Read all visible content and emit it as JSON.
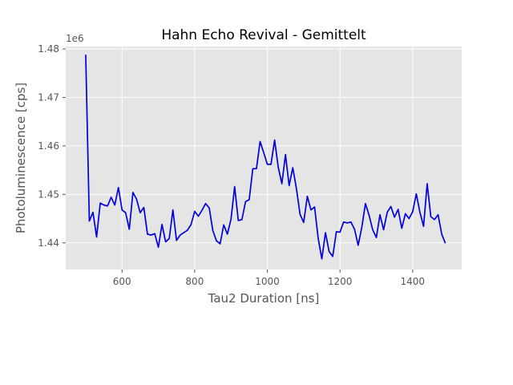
{
  "chart_data": {
    "type": "line",
    "title": "Hahn Echo Revival - Gemittelt",
    "xlabel": "Tau2 Duration [ns]",
    "ylabel": "Photoluminescence [cps]",
    "y_offset_label": "1e6",
    "xlim": [
      445,
      1535
    ],
    "ylim": [
      1.4345,
      1.4805
    ],
    "xticks": [
      600,
      800,
      1000,
      1200,
      1400
    ],
    "yticks": [
      1.44,
      1.45,
      1.46,
      1.47,
      1.48
    ],
    "xtick_labels": [
      "600",
      "800",
      "1000",
      "1200",
      "1400"
    ],
    "ytick_labels": [
      "1.44",
      "1.45",
      "1.46",
      "1.47",
      "1.48"
    ],
    "grid": true,
    "colors": {
      "background": "#e5e5e5",
      "grid": "#ffffff",
      "line": "#0000dd"
    },
    "series": [
      {
        "x": [
          500,
          510,
          520,
          530,
          540,
          550,
          560,
          570,
          580,
          590,
          600,
          610,
          620,
          630,
          640,
          650,
          660,
          670,
          680,
          690,
          700,
          710,
          720,
          730,
          740,
          750,
          760,
          770,
          780,
          790,
          800,
          810,
          820,
          830,
          840,
          850,
          860,
          870,
          880,
          890,
          900,
          910,
          920,
          930,
          940,
          950,
          960,
          970,
          980,
          990,
          1000,
          1010,
          1020,
          1030,
          1040,
          1050,
          1060,
          1070,
          1080,
          1090,
          1100,
          1110,
          1120,
          1130,
          1140,
          1150,
          1160,
          1170,
          1180,
          1190,
          1200,
          1210,
          1220,
          1230,
          1240,
          1250,
          1260,
          1270,
          1280,
          1290,
          1300,
          1310,
          1320,
          1330,
          1340,
          1350,
          1360,
          1370,
          1380,
          1390,
          1400,
          1410,
          1420,
          1430,
          1440,
          1450,
          1460,
          1470,
          1480,
          1490
        ],
        "y": [
          1.4788,
          1.4445,
          1.4463,
          1.4412,
          1.4482,
          1.4478,
          1.4476,
          1.4494,
          1.4478,
          1.4514,
          1.4468,
          1.4462,
          1.4428,
          1.4504,
          1.449,
          1.4462,
          1.4473,
          1.4418,
          1.4416,
          1.4419,
          1.4391,
          1.4438,
          1.4402,
          1.4409,
          1.4468,
          1.4405,
          1.4416,
          1.4421,
          1.4426,
          1.4438,
          1.4465,
          1.4455,
          1.4467,
          1.4481,
          1.4472,
          1.4425,
          1.4404,
          1.4398,
          1.4437,
          1.4418,
          1.4449,
          1.4516,
          1.4446,
          1.4448,
          1.4485,
          1.4489,
          1.4553,
          1.4553,
          1.4609,
          1.4586,
          1.4562,
          1.4562,
          1.4612,
          1.4556,
          1.4522,
          1.4582,
          1.4518,
          1.4555,
          1.4512,
          1.4459,
          1.4442,
          1.4496,
          1.4468,
          1.4474,
          1.4409,
          1.4367,
          1.4421,
          1.4382,
          1.4372,
          1.4423,
          1.4422,
          1.4443,
          1.4441,
          1.4443,
          1.4428,
          1.4395,
          1.4432,
          1.4481,
          1.4457,
          1.4427,
          1.4411,
          1.4458,
          1.4427,
          1.4463,
          1.4475,
          1.4453,
          1.4469,
          1.443,
          1.446,
          1.445,
          1.4464,
          1.4501,
          1.4463,
          1.4434,
          1.4522,
          1.4454,
          1.4448,
          1.4458,
          1.4418,
          1.4399
        ]
      }
    ]
  }
}
